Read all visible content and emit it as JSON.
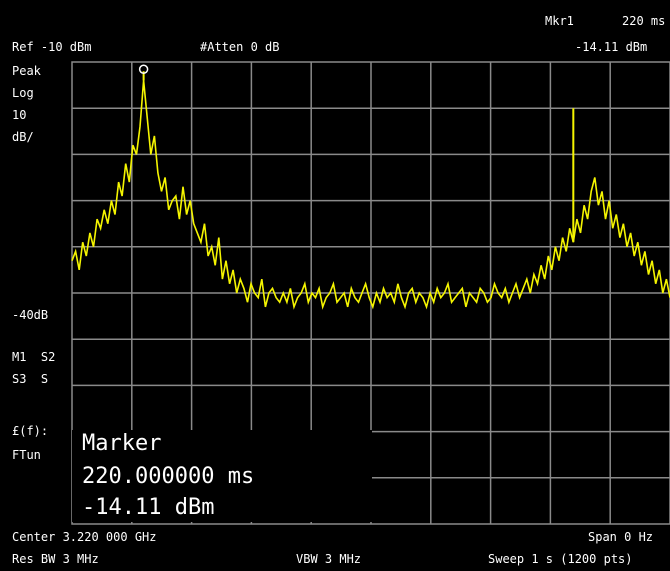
{
  "header": {
    "top_right_marker": "Mkr1",
    "top_right_value": "220 ms",
    "ref_level": "Ref -10 dBm",
    "attenuation": "#Atten 0 dB",
    "marker_readout": "-14.11 dBm"
  },
  "left_panel": {
    "peak": "Peak",
    "scale": "Log",
    "div": "10",
    "unit": "dB/",
    "ref_mark": "-40dB",
    "m1": "M1  S2",
    "s3": "S3  S",
    "fc": "£(f):",
    "ftun": "FTun"
  },
  "marker": {
    "title": "Marker",
    "time": "220.000000 ms",
    "amplitude": "-14.11 dBm"
  },
  "footer": {
    "center": "Center 3.220 000 GHz",
    "span": "Span 0 Hz",
    "res_bw": "Res BW 3 MHz",
    "vbw": "VBW 3 MHz",
    "sweep": "Sweep 1 s (1200 pts)"
  },
  "colors": {
    "trace": "#f5f500",
    "grid": "#8a8a8a",
    "background": "#000000"
  },
  "trace": {
    "points": [
      -53,
      -51,
      -55,
      -49,
      -52,
      -47,
      -50,
      -44,
      -46,
      -42,
      -45,
      -40,
      -43,
      -36,
      -39,
      -32,
      -36,
      -28,
      -30,
      -24,
      -14,
      -22,
      -30,
      -26,
      -34,
      -38,
      -35,
      -42,
      -40,
      -39,
      -44,
      -37,
      -43,
      -40,
      -45,
      -47,
      -49,
      -45,
      -52,
      -50,
      -54,
      -48,
      -57,
      -53,
      -58,
      -55,
      -60,
      -57,
      -59,
      -62,
      -58,
      -60,
      -61,
      -57,
      -63,
      -60,
      -59,
      -61,
      -62,
      -60,
      -62,
      -59,
      -63,
      -61,
      -60,
      -58,
      -62,
      -60,
      -61,
      -59,
      -63,
      -61,
      -60,
      -58,
      -62,
      -61,
      -60,
      -63,
      -59,
      -61,
      -62,
      -60,
      -58,
      -61,
      -63,
      -60,
      -62,
      -59,
      -61,
      -60,
      -62,
      -58,
      -61,
      -63,
      -60,
      -59,
      -62,
      -60,
      -61,
      -63,
      -60,
      -62,
      -59,
      -61,
      -60,
      -58,
      -62,
      -61,
      -60,
      -59,
      -63,
      -60,
      -61,
      -62,
      -59,
      -60,
      -62,
      -61,
      -58,
      -60,
      -61,
      -59,
      -62,
      -60,
      -58,
      -61,
      -59,
      -57,
      -60,
      -56,
      -58,
      -54,
      -57,
      -52,
      -55,
      -50,
      -53,
      -48,
      -51,
      -46,
      -49,
      -44,
      -47,
      -41,
      -44,
      -38,
      -35,
      -41,
      -38,
      -44,
      -40,
      -46,
      -43,
      -48,
      -45,
      -50,
      -47,
      -52,
      -49,
      -54,
      -51,
      -56,
      -53,
      -58,
      -55,
      -60,
      -57,
      -61
    ],
    "spikes": [
      {
        "i": 20,
        "v": -12
      },
      {
        "i": 140,
        "v": -20
      }
    ]
  }
}
